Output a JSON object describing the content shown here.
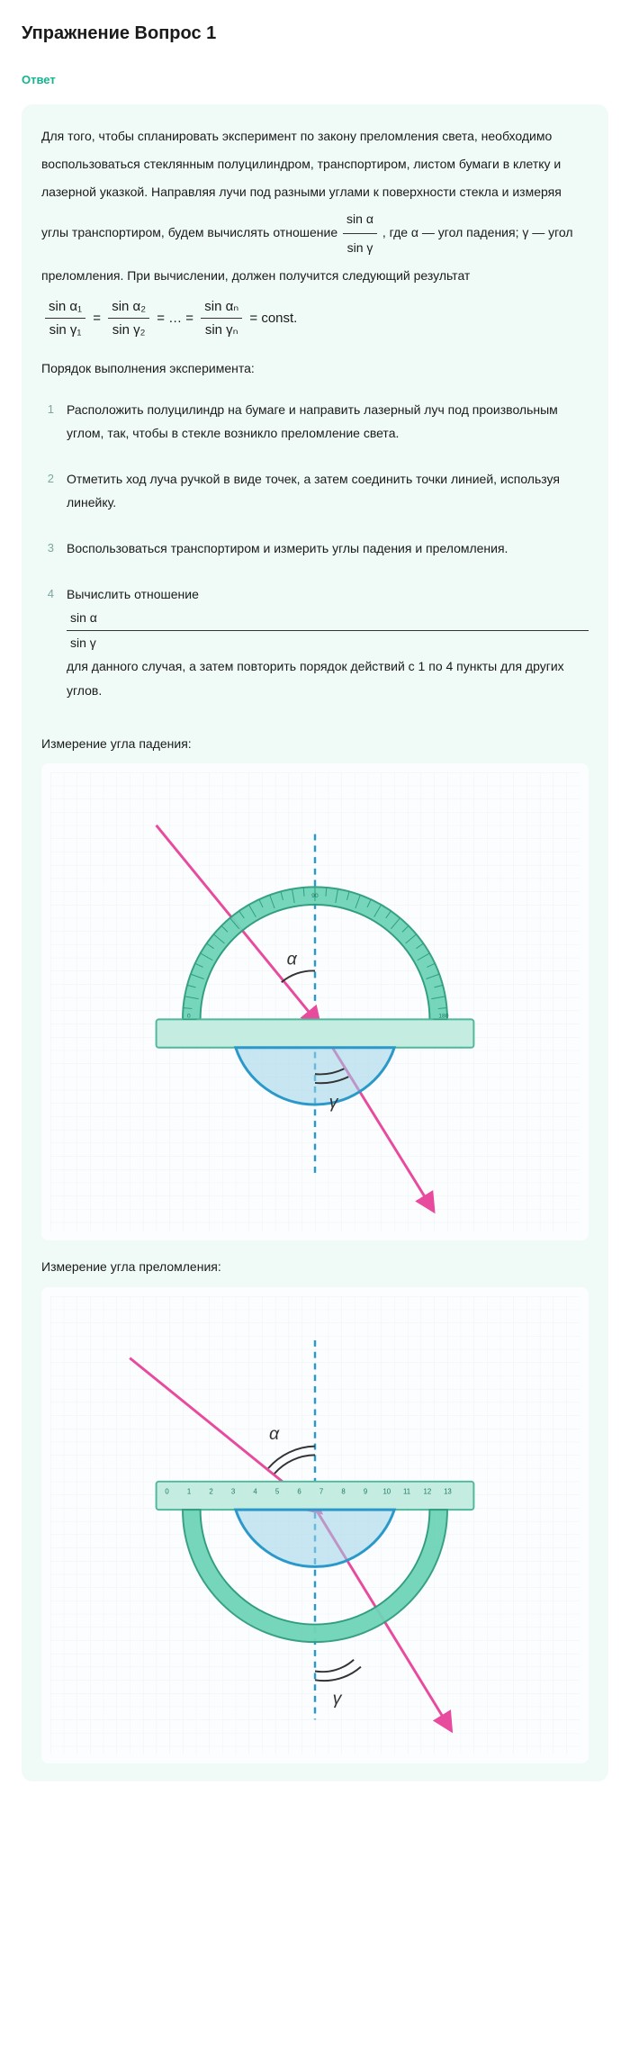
{
  "title": "Упражнение Вопрос 1",
  "answer_label": "Ответ",
  "paragraph": {
    "p1": "Для того, чтобы спланировать эксперимент по закону преломления света, необходимо воспользоваться стеклянным полуцилиндром, транспортиром, листом бумаги в клетку и лазерной указкой. Направляя лучи под разными углами к поверхности стекла и измеряя углы транспортиром, будем вычислять отношение ",
    "frac1_num": "sin α",
    "frac1_den": "sin γ",
    "p2": ", где α — угол падения; γ — угол преломления. При вычислении, должен получится следующий результат"
  },
  "equation": {
    "t1_num": "sin α₁",
    "t1_den": "sin γ₁",
    "t2_num": "sin α₂",
    "t2_den": "sin γ₂",
    "dots": "= … =",
    "tn_num": "sin αₙ",
    "tn_den": "sin γₙ",
    "const": "= const."
  },
  "steps_title": "Порядок выполнения эксперимента:",
  "steps": [
    "Расположить полуцилиндр на бумаге и направить лазерный луч под произвольным углом, так, чтобы в стекле возникло преломление света.",
    "Отметить ход луча ручкой в виде точек, а затем соединить точки линией, используя линейку.",
    "Воспользоваться транспортиром и измерить углы падения и преломления."
  ],
  "step4": {
    "pre": "Вычислить отношение ",
    "frac_num": "sin α",
    "frac_den": "sin γ",
    "post": " для данного случая, а затем повторить порядок действий с 1 по 4 пункты для других углов."
  },
  "diag1_label": "Измерение угла падения:",
  "diag2_label": "Измерение угла преломления:",
  "colors": {
    "answer_bg": "#f0fbf7",
    "accent": "#16b48e",
    "protractor_fill": "#6fd4b8",
    "protractor_stroke": "#2e9d7d",
    "ruler_fill": "#c4ece0",
    "ruler_stroke": "#4fb89a",
    "semicircle_fill": "#9bd3e8",
    "semicircle_stroke": "#2a99c9",
    "ray": "#e84a9e",
    "normal": "#2a99c9",
    "grid": "#eef2f6",
    "angle_arc": "#333333"
  },
  "alpha": "α",
  "gamma": "γ"
}
